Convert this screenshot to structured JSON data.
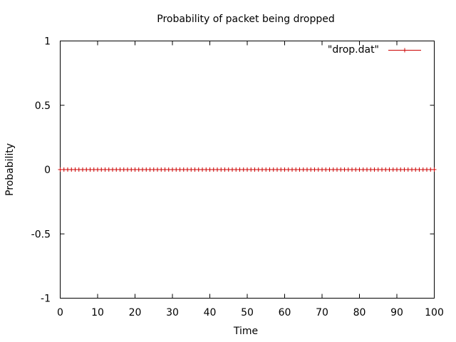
{
  "chart_data": {
    "type": "line",
    "title": "Probability of packet being dropped",
    "xlabel": "Time",
    "ylabel": "Probability",
    "xlim": [
      0,
      100
    ],
    "ylim": [
      -1,
      1
    ],
    "xticks": [
      "0",
      "10",
      "20",
      "30",
      "40",
      "50",
      "60",
      "70",
      "80",
      "90",
      "100"
    ],
    "yticks": [
      "1",
      "0.5",
      "0",
      "-0.5",
      "-1"
    ],
    "grid": false,
    "legend_position": "top-right",
    "series": [
      {
        "name": "\"drop.dat\"",
        "color": "#cc0000",
        "marker": "plus",
        "x": [
          0,
          1,
          2,
          3,
          4,
          5,
          6,
          7,
          8,
          9,
          10,
          11,
          12,
          13,
          14,
          15,
          16,
          17,
          18,
          19,
          20,
          21,
          22,
          23,
          24,
          25,
          26,
          27,
          28,
          29,
          30,
          31,
          32,
          33,
          34,
          35,
          36,
          37,
          38,
          39,
          40,
          41,
          42,
          43,
          44,
          45,
          46,
          47,
          48,
          49,
          50,
          51,
          52,
          53,
          54,
          55,
          56,
          57,
          58,
          59,
          60,
          61,
          62,
          63,
          64,
          65,
          66,
          67,
          68,
          69,
          70,
          71,
          72,
          73,
          74,
          75,
          76,
          77,
          78,
          79,
          80,
          81,
          82,
          83,
          84,
          85,
          86,
          87,
          88,
          89,
          90,
          91,
          92,
          93,
          94,
          95,
          96,
          97,
          98,
          99,
          100
        ],
        "y": [
          0,
          0,
          0,
          0,
          0,
          0,
          0,
          0,
          0,
          0,
          0,
          0,
          0,
          0,
          0,
          0,
          0,
          0,
          0,
          0,
          0,
          0,
          0,
          0,
          0,
          0,
          0,
          0,
          0,
          0,
          0,
          0,
          0,
          0,
          0,
          0,
          0,
          0,
          0,
          0,
          0,
          0,
          0,
          0,
          0,
          0,
          0,
          0,
          0,
          0,
          0,
          0,
          0,
          0,
          0,
          0,
          0,
          0,
          0,
          0,
          0,
          0,
          0,
          0,
          0,
          0,
          0,
          0,
          0,
          0,
          0,
          0,
          0,
          0,
          0,
          0,
          0,
          0,
          0,
          0,
          0,
          0,
          0,
          0,
          0,
          0,
          0,
          0,
          0,
          0,
          0,
          0,
          0,
          0,
          0,
          0,
          0,
          0,
          0,
          0,
          0
        ]
      }
    ]
  }
}
